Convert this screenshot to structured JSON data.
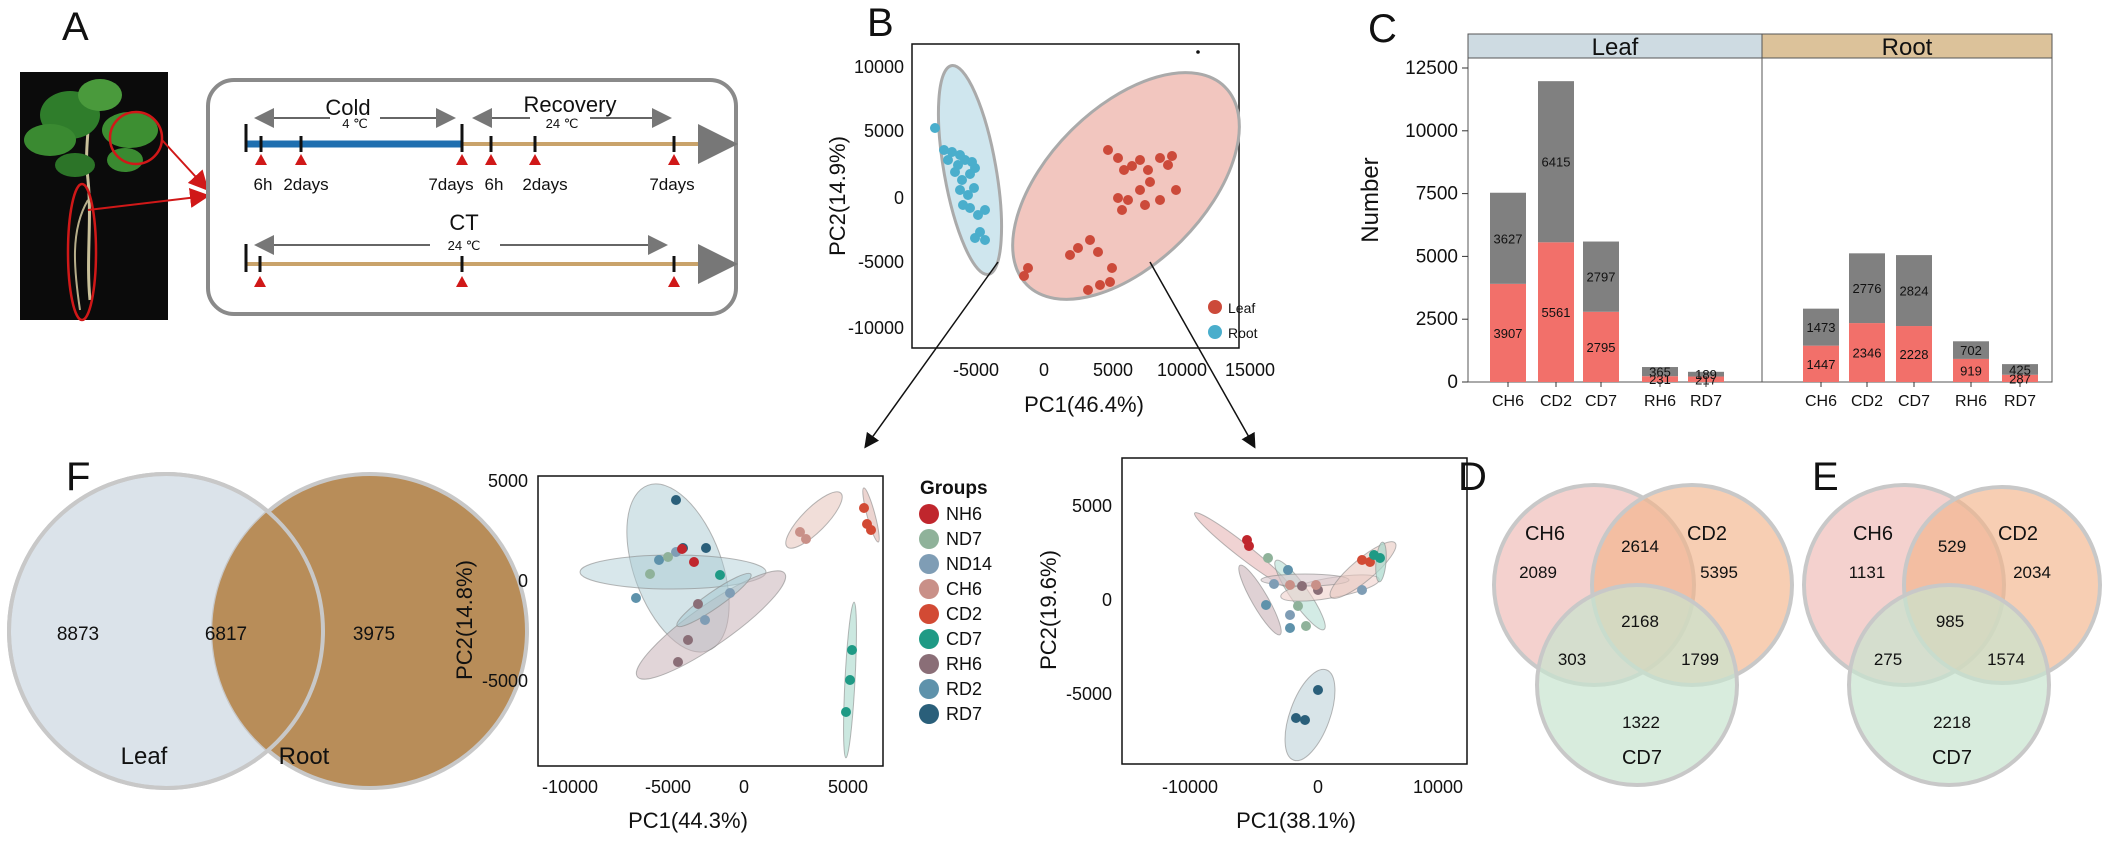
{
  "panels": {
    "A": {
      "letter": "A",
      "cold": "Cold",
      "cold_temp": "4 ℃",
      "recovery": "Recovery",
      "recovery_temp": "24 ℃",
      "ct": "CT",
      "ct_temp": "24 ℃",
      "ticks": [
        "6h",
        "2days",
        "7days",
        "6h",
        "2days",
        "7days"
      ]
    },
    "B": {
      "letter": "B",
      "xlabel": "PC1(46.4%)",
      "ylabel": "PC2(14.9%)",
      "xticks": [
        "-5000",
        "0",
        "5000",
        "10000",
        "15000"
      ],
      "yticks": [
        "10000",
        "5000",
        "0",
        "-5000",
        "-10000"
      ],
      "legend": [
        {
          "label": "Leaf",
          "color": "#cc4a3a"
        },
        {
          "label": "Root",
          "color": "#4aaecc"
        }
      ]
    },
    "C": {
      "letter": "C",
      "ylabel": "Number",
      "yticks": [
        "0",
        "2500",
        "5000",
        "7500",
        "10000",
        "12500"
      ],
      "facets": [
        "Leaf",
        "Root"
      ]
    },
    "D": {
      "letter": "D",
      "sets": [
        "CH6",
        "CD2",
        "CD7"
      ],
      "values": {
        "a": "2089",
        "b": "5395",
        "c": "1322",
        "ab": "2614",
        "ac": "303",
        "bc": "1799",
        "abc": "2168"
      }
    },
    "E": {
      "letter": "E",
      "sets": [
        "CH6",
        "CD2",
        "CD7"
      ],
      "values": {
        "a": "1131",
        "b": "2034",
        "c": "2218",
        "ab": "529",
        "ac": "275",
        "bc": "1574",
        "abc": "985"
      }
    },
    "F": {
      "letter": "F",
      "left": "Leaf",
      "right": "Root",
      "left_only": "8873",
      "overlap": "6817",
      "right_only": "3975"
    },
    "PCA_leaf": {
      "xlabel": "PC1(44.3%)",
      "ylabel": "PC2(14.8%)",
      "xticks": [
        "-10000",
        "-5000",
        "0",
        "5000"
      ],
      "yticks": [
        "5000",
        "0",
        "-5000"
      ]
    },
    "PCA_root": {
      "xlabel": "PC1(38.1%)",
      "ylabel": "PC2(19.6%)",
      "xticks": [
        "-10000",
        "0",
        "10000"
      ],
      "yticks": [
        "5000",
        "0",
        "-5000"
      ]
    },
    "groups": {
      "title": "Groups",
      "items": [
        {
          "label": "NH6",
          "color": "#c0262d"
        },
        {
          "label": "ND7",
          "color": "#8fb29a"
        },
        {
          "label": "ND14",
          "color": "#7f9db5"
        },
        {
          "label": "CH6",
          "color": "#c99088"
        },
        {
          "label": "CD2",
          "color": "#d24a34"
        },
        {
          "label": "CD7",
          "color": "#1f9a85"
        },
        {
          "label": "RH6",
          "color": "#8a6e77"
        },
        {
          "label": "RD2",
          "color": "#5e92ab"
        },
        {
          "label": "RD7",
          "color": "#2a5f7a"
        }
      ]
    }
  },
  "chart_data": {
    "type": "bar",
    "title": "",
    "xlabel": "",
    "ylabel": "Number",
    "ylim": [
      0,
      12500
    ],
    "facets": [
      "Leaf",
      "Root"
    ],
    "categories": [
      "CH6",
      "CD2",
      "CD7",
      "RH6",
      "RD7"
    ],
    "series": [
      {
        "name": "lower (red)",
        "color": "#f2706a",
        "Leaf": [
          3907,
          5561,
          2795,
          231,
          217
        ],
        "Root": [
          1447,
          2346,
          2228,
          919,
          287
        ]
      },
      {
        "name": "upper (grey)",
        "color": "#808080",
        "Leaf": [
          3627,
          6415,
          2797,
          365,
          189
        ],
        "Root": [
          1473,
          2776,
          2824,
          702,
          425
        ]
      }
    ]
  }
}
